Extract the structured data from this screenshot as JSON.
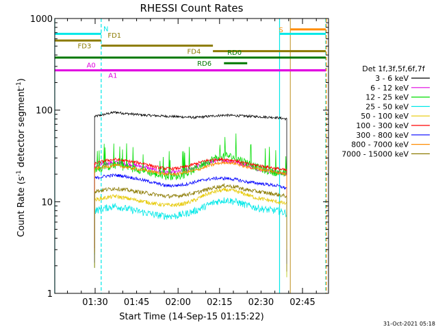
{
  "chart_data": {
    "type": "line",
    "title": "RHESSI Count Rates",
    "xlabel": "Start Time (14-Sep-15 01:15:22)",
    "ylabel_main": "Count Rate (s",
    "ylabel_sup": "-1",
    "ylabel_rest": " detector segment",
    "ylabel_close": ")",
    "x_unit": "minutes after 01:15:22",
    "xlim": [
      0,
      99
    ],
    "ylim": [
      1,
      1000
    ],
    "yscale": "log",
    "x_ticks": [
      {
        "x": 14.6,
        "label": "01:30"
      },
      {
        "x": 29.6,
        "label": "01:45"
      },
      {
        "x": 44.6,
        "label": "02:00"
      },
      {
        "x": 59.6,
        "label": "02:15"
      },
      {
        "x": 74.6,
        "label": "02:30"
      },
      {
        "x": 89.6,
        "label": "02:45"
      }
    ],
    "y_ticks": [
      {
        "y": 1,
        "label": "1"
      },
      {
        "y": 10,
        "label": "10"
      },
      {
        "y": 100,
        "label": "100"
      },
      {
        "y": 1000,
        "label": "1000"
      }
    ],
    "legend_title": "Det 1f,3f,5f,6f,7f",
    "legend_position": "right",
    "data_start_x": 14.4,
    "data_end_x": 83.9,
    "series": [
      {
        "name": "3 - 6 keV",
        "color": "#000000",
        "values": [
          85,
          90,
          95,
          92,
          90,
          88,
          87,
          86,
          85,
          84,
          83,
          85,
          87,
          88,
          87,
          86,
          85,
          84,
          83,
          80
        ]
      },
      {
        "name": "6 - 12 keV",
        "color": "#e000e0",
        "values": [
          24,
          26,
          27,
          26,
          25,
          24,
          22,
          21,
          21,
          22,
          24,
          26,
          28,
          28,
          27,
          25,
          23,
          22,
          21,
          20
        ]
      },
      {
        "name": "12 - 25 keV",
        "color": "#00dd00",
        "values": [
          22,
          24,
          25,
          24,
          23,
          22,
          20,
          19,
          19,
          20,
          23,
          27,
          30,
          32,
          30,
          27,
          24,
          22,
          21,
          20
        ]
      },
      {
        "name": "25 - 50 keV",
        "color": "#00e8e8",
        "values": [
          8,
          8.5,
          9,
          8.5,
          8,
          7.6,
          7.2,
          7,
          7,
          7.4,
          8,
          9,
          10,
          10.5,
          10,
          9.2,
          8.6,
          8.2,
          8,
          7.5
        ]
      },
      {
        "name": "50 - 100 keV",
        "color": "#e6c800",
        "values": [
          10.5,
          11,
          11.5,
          11,
          10.5,
          10,
          9.5,
          9.2,
          9.2,
          9.6,
          10.5,
          12,
          13,
          13.5,
          13,
          12,
          11,
          10.5,
          10,
          9.5
        ]
      },
      {
        "name": "100 - 300 keV",
        "color": "#ff0000",
        "values": [
          26,
          28,
          29,
          28,
          27,
          26,
          24,
          23,
          23,
          24,
          26,
          28,
          29,
          29,
          28,
          26,
          25,
          24,
          23,
          22
        ]
      },
      {
        "name": "300 - 800 keV",
        "color": "#0000ff",
        "values": [
          18,
          19,
          19.5,
          19,
          18,
          17,
          16,
          15,
          15,
          15.5,
          16.5,
          17.5,
          18,
          18,
          17.5,
          16.5,
          16,
          15.5,
          15,
          14
        ]
      },
      {
        "name": "800 - 7000 keV",
        "color": "#ff8c00",
        "values": [
          23,
          24,
          25,
          24,
          23,
          22,
          21,
          20,
          20,
          21,
          22,
          24,
          26,
          27,
          26,
          24,
          23,
          22,
          21,
          20
        ]
      },
      {
        "name": "7000 - 15000 keV",
        "color": "#8b7a00",
        "values": [
          13,
          13.5,
          14,
          13.5,
          13,
          12.5,
          12,
          11.5,
          11.5,
          12,
          12.5,
          13.5,
          14.5,
          15,
          14.5,
          13.5,
          13,
          12.5,
          12,
          11.5
        ]
      }
    ],
    "vertical_markers": [
      {
        "x": 0,
        "color": "#00e8e8",
        "style": "solid"
      },
      {
        "x": 16.8,
        "color": "#00e8e8",
        "style": "dashed"
      },
      {
        "x": 81.3,
        "color": "#00e8e8",
        "style": "solid"
      },
      {
        "x": 85.2,
        "color": "#c8a040",
        "style": "solid"
      },
      {
        "x": 98.0,
        "color": "#00e8e8",
        "style": "dashed"
      },
      {
        "x": 98.2,
        "color": "#ff8c00",
        "style": "dashed"
      }
    ],
    "flag_bars": [
      {
        "y": 680,
        "x0": 0,
        "x1": 16.8,
        "color": "#00e8e8",
        "label": "N",
        "label_x": 18.5,
        "label_pos": "above"
      },
      {
        "y": 680,
        "x0": 81.3,
        "x1": 98.0,
        "color": "#00e8e8"
      },
      {
        "y": 760,
        "x0": 85.2,
        "x1": 98.0,
        "color": "#ff8c00",
        "label": "S",
        "label_x": 82.6,
        "label_pos": "left"
      },
      {
        "y": 575,
        "x0": 0,
        "x1": 16.8,
        "color": "#8b7a00",
        "label": "FD1",
        "label_x": 21.6,
        "label_pos": "above"
      },
      {
        "y": 505,
        "x0": 16.8,
        "x1": 57.2,
        "color": "#8b7a00",
        "label": "FD3",
        "label_x": 13.2,
        "label_pos": "left"
      },
      {
        "y": 440,
        "x0": 57.2,
        "x1": 98.0,
        "color": "#8b7a00",
        "label": "FD4",
        "label_x": 52.8,
        "label_pos": "left"
      },
      {
        "y": 375,
        "x0": 0,
        "x1": 98.0,
        "color": "#007700",
        "label": "RD0",
        "label_x": 65.0,
        "label_pos": "above"
      },
      {
        "y": 325,
        "x0": 61.2,
        "x1": 69.6,
        "color": "#007700",
        "label": "RD6",
        "label_x": 56.7,
        "label_pos": "left"
      },
      {
        "y": 272,
        "x0": 0,
        "x1": 98.0,
        "color": "#e000e0",
        "label": "A0",
        "label_x": 14.8,
        "label_pos": "above-left"
      },
      {
        "y": 272,
        "x0": 16.8,
        "x1": 98.0,
        "color": "#e000e0",
        "label": "A1",
        "label_x": 21.0,
        "label_pos": "below"
      }
    ]
  },
  "timestamp": "31-Oct-2021 05:18"
}
